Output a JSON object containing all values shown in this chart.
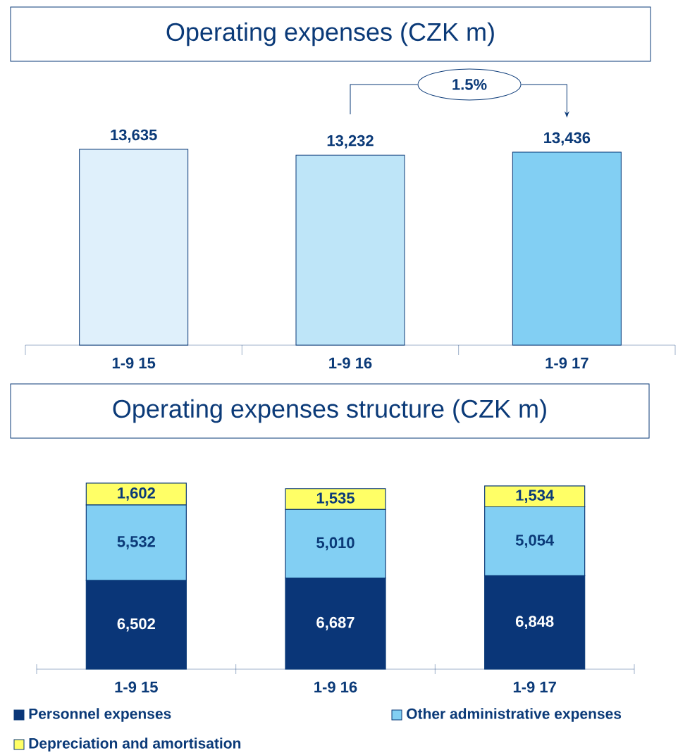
{
  "chart_data": [
    {
      "type": "bar",
      "title": "Operating expenses (CZK m)",
      "categories": [
        "1-9 15",
        "1-9 16",
        "1-9 17"
      ],
      "values": [
        13635,
        13232,
        13436
      ],
      "colors": [
        "#dff0fb",
        "#bee5f8",
        "#82cff3"
      ],
      "value_labels": [
        "13,635",
        "13,232",
        "13,436"
      ],
      "annotations": [
        "1.5%"
      ]
    },
    {
      "type": "bar",
      "title": "Operating expenses structure (CZK m)",
      "categories": [
        "1-9 15",
        "1-9 16",
        "1-9 17"
      ],
      "stacked": true,
      "legend": "bottom",
      "series": [
        {
          "name": "Personnel expenses",
          "color": "#0a3678",
          "values": [
            6502,
            6687,
            6848
          ],
          "value_labels": [
            "6,502",
            "6,687",
            "6,848"
          ]
        },
        {
          "name": "Other administrative expenses",
          "color": "#82cff3",
          "values": [
            5532,
            5010,
            5054
          ],
          "value_labels": [
            "5,532",
            "5,010",
            "5,054"
          ]
        },
        {
          "name": "Depreciation and amortisation",
          "color": "#ffff66",
          "values": [
            1602,
            1535,
            1534
          ],
          "value_labels": [
            "1,602",
            "1,535",
            "1,534"
          ]
        }
      ]
    }
  ]
}
